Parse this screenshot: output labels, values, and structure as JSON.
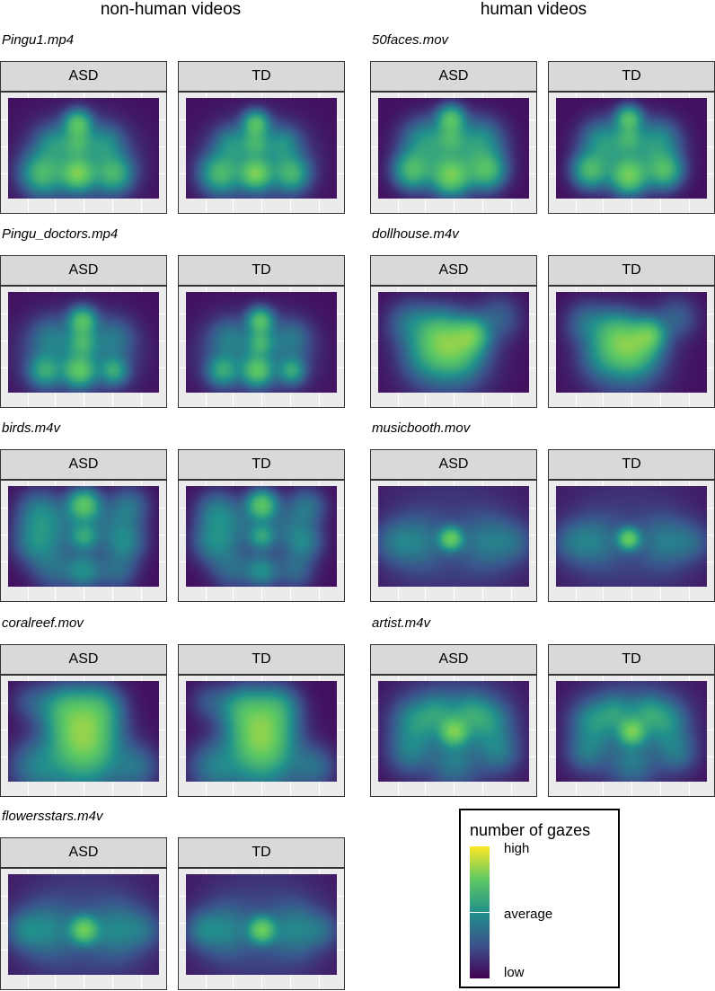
{
  "headers": {
    "left": "non-human videos",
    "right": "human videos"
  },
  "groups": [
    "ASD",
    "TD"
  ],
  "legend": {
    "title": "number of gazes",
    "high": "high",
    "average": "average",
    "low": "low"
  },
  "palette": [
    "#440154",
    "#3b528b",
    "#21918c",
    "#5ec962",
    "#fde725"
  ],
  "chart_data": {
    "type": "heatmap",
    "panels": [
      {
        "video": "Pingu1.mp4",
        "column": "non-human videos"
      },
      {
        "video": "Pingu_doctors.mp4",
        "column": "non-human videos"
      },
      {
        "video": "birds.m4v",
        "column": "non-human videos"
      },
      {
        "video": "coralreef.mov",
        "column": "non-human videos"
      },
      {
        "video": "flowersstars.m4v",
        "column": "non-human videos"
      },
      {
        "video": "50faces.mov",
        "column": "human videos"
      },
      {
        "video": "dollhouse.m4v",
        "column": "human videos"
      },
      {
        "video": "musicbooth.mov",
        "column": "human videos"
      },
      {
        "video": "artist.m4v",
        "column": "human videos"
      }
    ]
  }
}
